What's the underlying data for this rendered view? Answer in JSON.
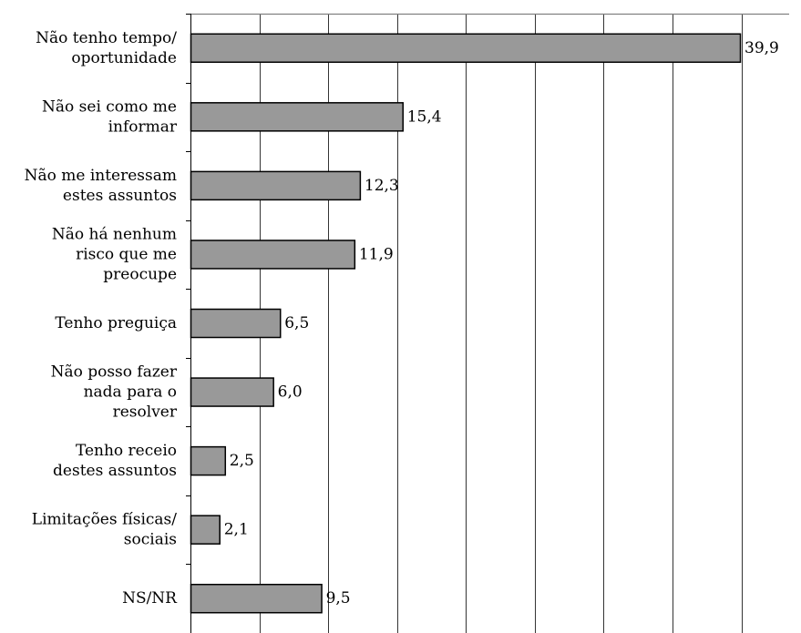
{
  "chart_data": {
    "type": "bar",
    "orientation": "horizontal",
    "title": "",
    "xlabel": "",
    "ylabel": "",
    "categories": [
      [
        "Não tenho tempo/",
        "oportunidade"
      ],
      [
        "Não sei como me",
        "informar"
      ],
      [
        "Não me interessam",
        "estes assuntos"
      ],
      [
        "Não há nenhum",
        "risco que me",
        "preocupe"
      ],
      [
        "Tenho preguiça"
      ],
      [
        "Não posso fazer",
        "nada para o",
        "resolver"
      ],
      [
        "Tenho receio",
        "destes assuntos"
      ],
      [
        "Limitações físicas/",
        "sociais"
      ],
      [
        "NS/NR"
      ]
    ],
    "values": [
      39.9,
      15.4,
      12.3,
      11.9,
      6.5,
      6.0,
      2.5,
      2.1,
      9.5
    ],
    "value_labels": [
      "39,9",
      "15,4",
      "12,3",
      "11,9",
      "6,5",
      "6,0",
      "2,5",
      "2,1",
      "9,5"
    ],
    "xlim": [
      0,
      45
    ],
    "major_step": 5,
    "grid": true,
    "bar_color": "#999999",
    "bar_edge_color": "#000000",
    "grid_color": "#000000",
    "legend": "none"
  }
}
